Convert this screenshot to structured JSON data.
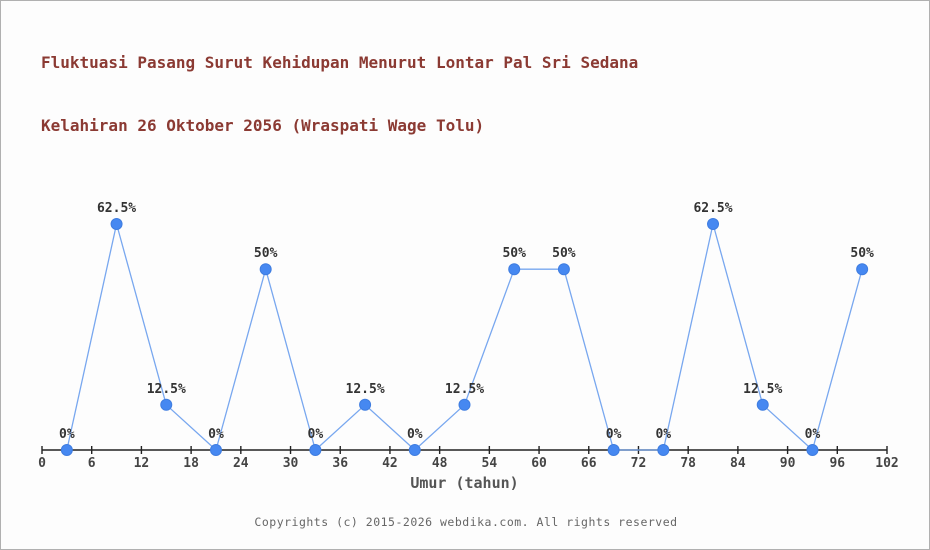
{
  "title": {
    "line1": "Fluktuasi Pasang Surut Kehidupan Menurut Lontar Pal Sri Sedana",
    "line2": "Kelahiran 26 Oktober 2056 (Wraspati Wage Tolu)"
  },
  "footer": {
    "copyright": "Copyrights (c) 2015-2026 webdika.com. All rights reserved"
  },
  "colors": {
    "title": "#8b3a33",
    "marker_fill": "#4688f1",
    "marker_edge": "#3f7de0",
    "line": "#78a7ef",
    "axis": "#222222",
    "tick_label": "#444444",
    "value_label": "#333333",
    "axis_title": "#555555",
    "footer_text": "#666666",
    "background": "#fdfdfd"
  },
  "chart_data": {
    "type": "line",
    "title": "Fluktuasi Pasang Surut Kehidupan Menurut Lontar Pal Sri Sedana Kelahiran 26 Oktober 2056 (Wraspati Wage Tolu)",
    "xlabel": "Umur (tahun)",
    "ylabel": "",
    "x": [
      3,
      9,
      15,
      21,
      27,
      33,
      39,
      45,
      51,
      57,
      63,
      69,
      75,
      81,
      87,
      93,
      99
    ],
    "values": [
      0,
      62.5,
      12.5,
      0,
      50,
      0,
      12.5,
      0,
      12.5,
      50,
      50,
      0,
      0,
      62.5,
      12.5,
      0,
      50
    ],
    "point_labels": [
      "0%",
      "62.5%",
      "12.5%",
      "0%",
      "50%",
      "0%",
      "12.5%",
      "0%",
      "12.5%",
      "50%",
      "50%",
      "0%",
      "0%",
      "62.5%",
      "12.5%",
      "0%",
      "50%"
    ],
    "x_ticks": [
      0,
      6,
      12,
      18,
      24,
      30,
      36,
      42,
      48,
      54,
      60,
      66,
      72,
      78,
      84,
      90,
      96,
      102
    ],
    "xlim": [
      0,
      102
    ],
    "ylim": [
      0,
      100
    ],
    "grid": false,
    "legend_position": "none"
  }
}
